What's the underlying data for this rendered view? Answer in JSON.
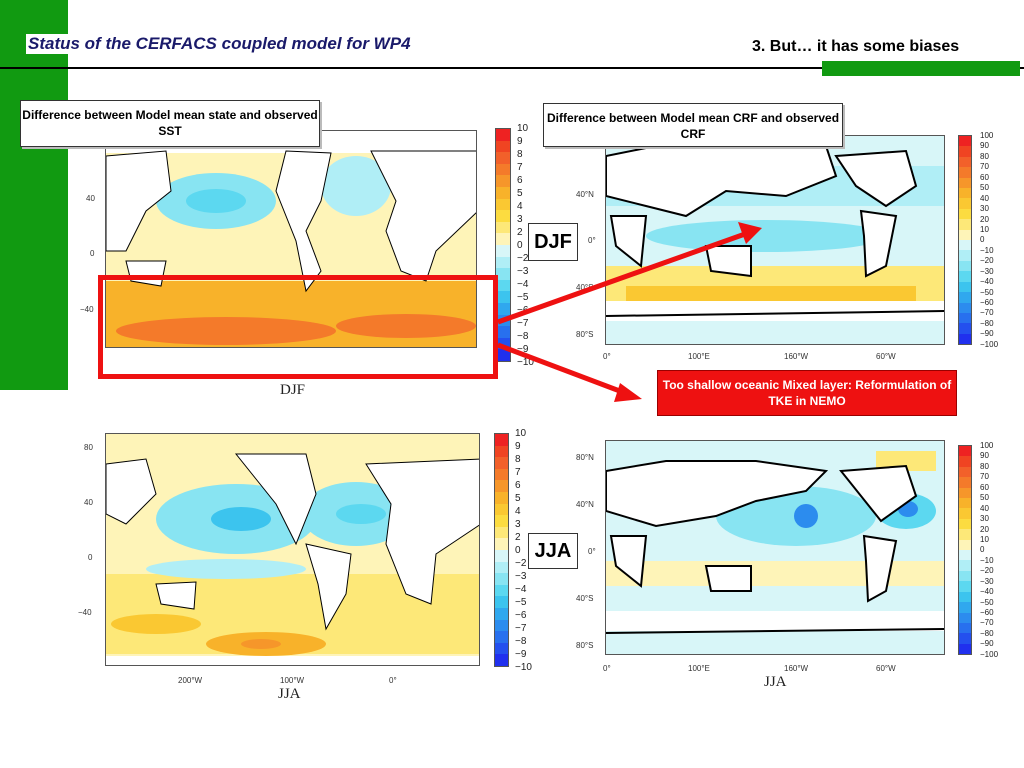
{
  "header": {
    "title": "Status of the CERFACS coupled model for WP4",
    "section": "3. But… it has some biases"
  },
  "sst_label": "Difference between Model mean state and observed SST",
  "crf_label": "Difference between Model mean CRF and observed CRF",
  "seasons": {
    "djf": "DJF",
    "jja": "JJA"
  },
  "note": "Too shallow oceanic Mixed layer: Reformulation of TKE in NEMO",
  "sst_colorbar": {
    "ticks": [
      "10",
      "9",
      "8",
      "7",
      "6",
      "5",
      "4",
      "3",
      "2",
      "0",
      "−2",
      "−3",
      "−4",
      "−5",
      "−6",
      "−7",
      "−8",
      "−9",
      "−10"
    ]
  },
  "crf_colorbar": {
    "ticks": [
      "100",
      "90",
      "80",
      "70",
      "60",
      "50",
      "40",
      "30",
      "20",
      "10",
      "0",
      "−10",
      "−20",
      "−30",
      "−40",
      "−50",
      "−60",
      "−70",
      "−80",
      "−90",
      "−100"
    ]
  },
  "colorbar_colors": [
    "#ee2222",
    "#f04422",
    "#f2602a",
    "#f47a2a",
    "#f6962a",
    "#f8b22a",
    "#fac832",
    "#fcdc40",
    "#fde878",
    "#fef4b8",
    "#d8f6f8",
    "#b0eef6",
    "#88e4f2",
    "#5cd8f0",
    "#3cc4ee",
    "#30a8ee",
    "#2c8cee",
    "#2870ee",
    "#2450ee",
    "#2030ee"
  ],
  "sst_axes": {
    "lat": [
      "40",
      "0",
      "−40"
    ],
    "lat_jja": [
      "80",
      "40",
      "0",
      "−40"
    ],
    "lon": [
      "200°W",
      "100°W",
      "0°"
    ]
  },
  "crf_axes": {
    "lat_djf": [
      "40°N",
      "0°",
      "40°S",
      "80°S"
    ],
    "lat_jja": [
      "80°N",
      "40°N",
      "0°",
      "40°S",
      "80°S"
    ],
    "lon": [
      "0°",
      "100°E",
      "160°W",
      "60°W"
    ]
  }
}
